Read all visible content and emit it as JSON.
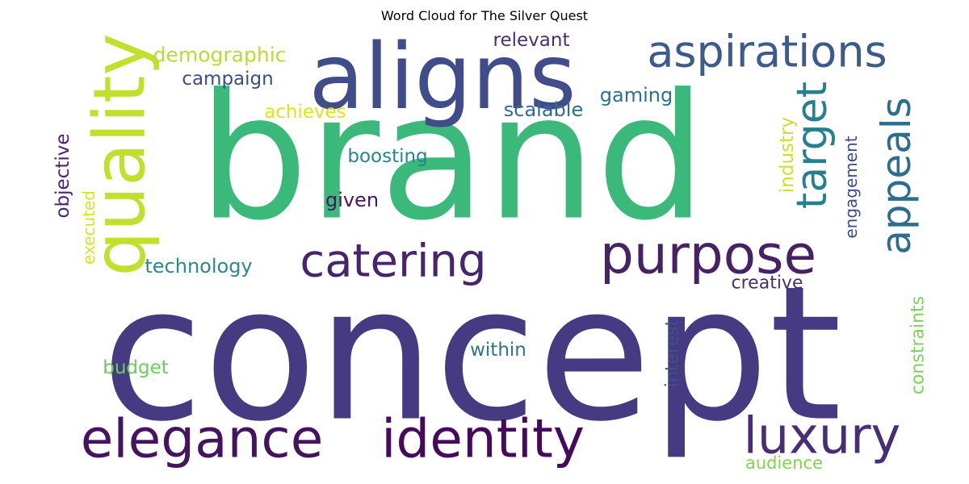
{
  "title": "Word Cloud for The Silver Quest",
  "words": [
    {
      "text": "concept",
      "color": "#463a82"
    },
    {
      "text": "brand",
      "color": "#3bb97a"
    },
    {
      "text": "aligns",
      "color": "#414d8b"
    },
    {
      "text": "quality",
      "color": "#c1df2d"
    },
    {
      "text": "aspirations",
      "color": "#3d5a8d"
    },
    {
      "text": "purpose",
      "color": "#462264"
    },
    {
      "text": "catering",
      "color": "#47256c"
    },
    {
      "text": "target",
      "color": "#277f8e"
    },
    {
      "text": "appeals",
      "color": "#2e6d8e"
    },
    {
      "text": "elegance",
      "color": "#45145f"
    },
    {
      "text": "identity",
      "color": "#460a5d"
    },
    {
      "text": "luxury",
      "color": "#472e75"
    },
    {
      "text": "demographic",
      "color": "#b8dc34"
    },
    {
      "text": "relevant",
      "color": "#46306f"
    },
    {
      "text": "campaign",
      "color": "#3b4c89"
    },
    {
      "text": "gaming",
      "color": "#2c728e"
    },
    {
      "text": "scalable",
      "color": "#2f6c8e"
    },
    {
      "text": "achieves",
      "color": "#dde31c"
    },
    {
      "text": "boosting",
      "color": "#24868e"
    },
    {
      "text": "objective",
      "color": "#482475"
    },
    {
      "text": "executed",
      "color": "#d6e22a"
    },
    {
      "text": "given",
      "color": "#44195e"
    },
    {
      "text": "technology",
      "color": "#2a8a8c"
    },
    {
      "text": "industry",
      "color": "#c8e034"
    },
    {
      "text": "engagement",
      "color": "#3e4a89"
    },
    {
      "text": "creative",
      "color": "#46306f"
    },
    {
      "text": "constraints",
      "color": "#7cd25a"
    },
    {
      "text": "interest",
      "color": "#3f5189"
    },
    {
      "text": "within",
      "color": "#2d738e"
    },
    {
      "text": "budget",
      "color": "#6ccc5e"
    },
    {
      "text": "audience",
      "color": "#84d44b"
    }
  ]
}
